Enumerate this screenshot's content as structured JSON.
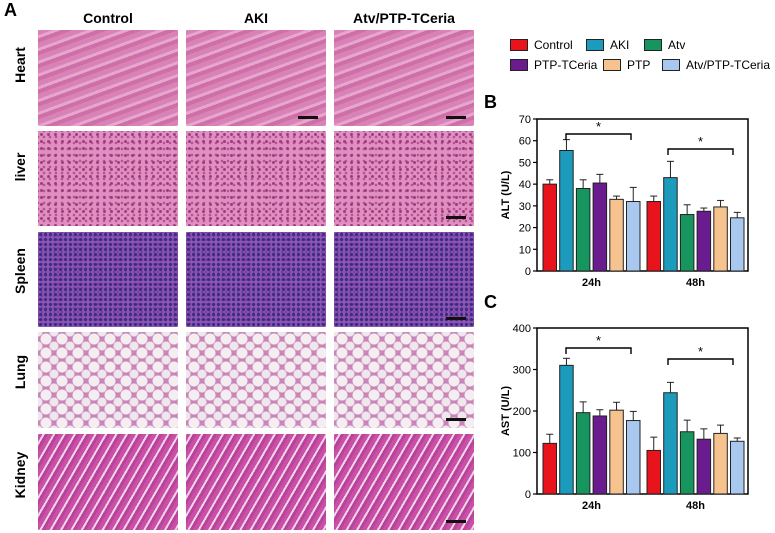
{
  "panel_labels": {
    "a": "A",
    "b": "B",
    "c": "C"
  },
  "histology": {
    "columns": [
      "Control",
      "AKI",
      "Atv/PTP-TCeria"
    ],
    "rows": [
      "Heart",
      "liver",
      "Spleen",
      "Lung",
      "Kidney"
    ]
  },
  "legend": [
    {
      "label": "Control",
      "color": "#e8131b"
    },
    {
      "label": "AKI",
      "color": "#1c9bbd"
    },
    {
      "label": "Atv",
      "color": "#17955e"
    },
    {
      "label": "PTP-TCeria",
      "color": "#6a1b8e"
    },
    {
      "label": "PTP",
      "color": "#f6c28e"
    },
    {
      "label": "Atv/PTP-TCeria",
      "color": "#a8c8f0"
    }
  ],
  "chart_data": [
    {
      "type": "bar",
      "ylabel": "ALT (U/L)",
      "ylim": [
        0,
        70
      ],
      "yticks": [
        "0",
        "10",
        "20",
        "30",
        "40",
        "50",
        "60",
        "70"
      ],
      "categories": [
        "24h",
        "48h"
      ],
      "series": [
        {
          "name": "Control",
          "values": [
            40,
            32
          ],
          "errors": [
            2,
            2.5
          ]
        },
        {
          "name": "AKI",
          "values": [
            55.5,
            43
          ],
          "errors": [
            5,
            7.5
          ]
        },
        {
          "name": "Atv",
          "values": [
            38,
            26
          ],
          "errors": [
            4,
            4.5
          ]
        },
        {
          "name": "PTP-TCeria",
          "values": [
            40.5,
            27.5
          ],
          "errors": [
            4,
            1.5
          ]
        },
        {
          "name": "PTP",
          "values": [
            33,
            29.5
          ],
          "errors": [
            1.5,
            3
          ]
        },
        {
          "name": "Atv/PTP-TCeria",
          "values": [
            32,
            24.5
          ],
          "errors": [
            6.5,
            2.5
          ]
        }
      ],
      "significance": [
        "*",
        "*"
      ]
    },
    {
      "type": "bar",
      "ylabel": "AST (U/L)",
      "ylim": [
        0,
        400
      ],
      "yticks": [
        "0",
        "100",
        "200",
        "300",
        "400"
      ],
      "categories": [
        "24h",
        "48h"
      ],
      "series": [
        {
          "name": "Control",
          "values": [
            122,
            105
          ],
          "errors": [
            22,
            32
          ]
        },
        {
          "name": "AKI",
          "values": [
            310,
            244
          ],
          "errors": [
            17,
            25
          ]
        },
        {
          "name": "Atv",
          "values": [
            196,
            150
          ],
          "errors": [
            26,
            28
          ]
        },
        {
          "name": "PTP-TCeria",
          "values": [
            188,
            132
          ],
          "errors": [
            15,
            25
          ]
        },
        {
          "name": "PTP",
          "values": [
            202,
            146
          ],
          "errors": [
            19,
            20
          ]
        },
        {
          "name": "Atv/PTP-TCeria",
          "values": [
            177,
            127
          ],
          "errors": [
            22,
            8
          ]
        }
      ],
      "significance": [
        "*",
        "*"
      ]
    }
  ]
}
